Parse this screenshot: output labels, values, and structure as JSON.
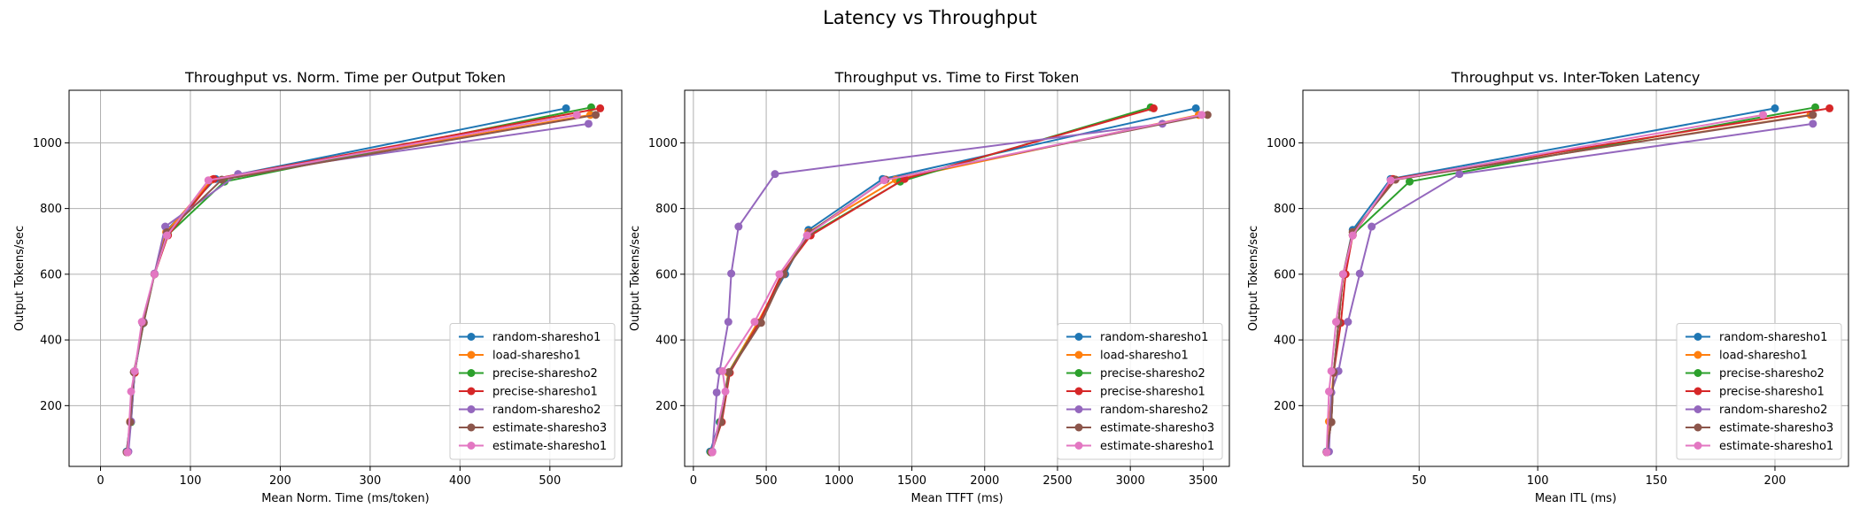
{
  "figure_title": "Latency vs Throughput",
  "series_colors": {
    "random-sharesho1": "#1f77b4",
    "load-sharesho1": "#ff7f0e",
    "precise-sharesho2": "#2ca02c",
    "precise-sharesho1": "#d62728",
    "random-sharesho2": "#9467bd",
    "estimate-sharesho3": "#8c564b",
    "estimate-sharesho1": "#e377c2"
  },
  "chart_data": [
    {
      "type": "line",
      "title": "Throughput vs. Norm. Time per Output Token",
      "xlabel": "Mean Norm. Time (ms/token)",
      "ylabel": "Output Tokens/sec",
      "xlim": [
        -35,
        580
      ],
      "ylim": [
        15,
        1160
      ],
      "xticks": [
        0,
        100,
        200,
        300,
        400,
        500
      ],
      "yticks": [
        200,
        400,
        600,
        800,
        1000
      ],
      "grid": true,
      "legend": "lower right",
      "series": [
        {
          "name": "random-sharesho1",
          "x": [
            29,
            33,
            38,
            47,
            60,
            74,
            128,
            518
          ],
          "y": [
            60,
            150,
            300,
            450,
            600,
            735,
            890,
            1105
          ]
        },
        {
          "name": "load-sharesho1",
          "x": [
            30,
            33,
            38,
            47,
            60,
            73,
            124,
            545
          ],
          "y": [
            58,
            152,
            300,
            452,
            600,
            728,
            888,
            1085
          ]
        },
        {
          "name": "precise-sharesho2",
          "x": [
            30,
            34,
            38,
            48,
            60,
            75,
            138,
            546
          ],
          "y": [
            58,
            150,
            302,
            452,
            600,
            720,
            882,
            1108
          ]
        },
        {
          "name": "precise-sharesho1",
          "x": [
            30,
            33,
            38,
            47,
            60,
            75,
            126,
            556
          ],
          "y": [
            58,
            150,
            300,
            452,
            600,
            718,
            890,
            1105
          ]
        },
        {
          "name": "random-sharesho2",
          "x": [
            31,
            34,
            38,
            48,
            60,
            72,
            153,
            543
          ],
          "y": [
            60,
            152,
            305,
            455,
            602,
            745,
            905,
            1058
          ]
        },
        {
          "name": "estimate-sharesho3",
          "x": [
            29,
            33,
            37,
            48,
            60,
            74,
            135,
            551
          ],
          "y": [
            58,
            150,
            302,
            452,
            600,
            728,
            888,
            1085
          ]
        },
        {
          "name": "estimate-sharesho1",
          "x": [
            30,
            34,
            38,
            46,
            60,
            74,
            120,
            530
          ],
          "y": [
            58,
            243,
            305,
            455,
            600,
            718,
            886,
            1085
          ]
        }
      ]
    },
    {
      "type": "line",
      "title": "Throughput vs. Time to First Token",
      "xlabel": "Mean TTFT (ms)",
      "ylabel": "Output Tokens/sec",
      "xlim": [
        -60,
        3680
      ],
      "ylim": [
        15,
        1160
      ],
      "xticks": [
        0,
        500,
        1000,
        1500,
        2000,
        2500,
        3000,
        3500
      ],
      "yticks": [
        200,
        400,
        600,
        800,
        1000
      ],
      "grid": true,
      "legend": "lower right",
      "series": [
        {
          "name": "random-sharesho1",
          "x": [
            115,
            180,
            240,
            440,
            630,
            790,
            1300,
            3450
          ],
          "y": [
            60,
            150,
            300,
            450,
            600,
            735,
            890,
            1105
          ]
        },
        {
          "name": "load-sharesho1",
          "x": [
            120,
            190,
            240,
            440,
            620,
            790,
            1390,
            3470
          ],
          "y": [
            58,
            152,
            300,
            452,
            600,
            728,
            888,
            1085
          ]
        },
        {
          "name": "precise-sharesho2",
          "x": [
            120,
            185,
            245,
            450,
            610,
            800,
            1420,
            3140
          ],
          "y": [
            58,
            150,
            302,
            452,
            600,
            720,
            882,
            1108
          ]
        },
        {
          "name": "precise-sharesho1",
          "x": [
            125,
            195,
            250,
            450,
            605,
            805,
            1450,
            3160
          ],
          "y": [
            58,
            150,
            300,
            452,
            600,
            718,
            890,
            1105
          ]
        },
        {
          "name": "random-sharesho2",
          "x": [
            130,
            160,
            180,
            240,
            260,
            310,
            560,
            3220
          ],
          "y": [
            60,
            240,
            305,
            455,
            602,
            745,
            905,
            1058
          ]
        },
        {
          "name": "estimate-sharesho3",
          "x": [
            125,
            190,
            245,
            465,
            620,
            800,
            1320,
            3530
          ],
          "y": [
            58,
            150,
            302,
            452,
            600,
            728,
            888,
            1085
          ]
        },
        {
          "name": "estimate-sharesho1",
          "x": [
            130,
            220,
            200,
            420,
            590,
            780,
            1310,
            3490
          ],
          "y": [
            58,
            243,
            305,
            455,
            600,
            718,
            886,
            1085
          ]
        }
      ]
    },
    {
      "type": "line",
      "title": "Throughput vs. Inter-Token Latency",
      "xlabel": "Mean ITL (ms)",
      "ylabel": "Output Tokens/sec",
      "xlim": [
        1,
        231
      ],
      "ylim": [
        15,
        1160
      ],
      "xticks": [
        50,
        100,
        150,
        200
      ],
      "yticks": [
        200,
        400,
        600,
        800,
        1000
      ],
      "grid": true,
      "legend": "lower right",
      "series": [
        {
          "name": "random-sharesho1",
          "x": [
            11,
            13,
            14,
            16,
            18,
            22,
            38,
            200
          ],
          "y": [
            60,
            150,
            300,
            450,
            600,
            735,
            890,
            1105
          ]
        },
        {
          "name": "load-sharesho1",
          "x": [
            11,
            12,
            14,
            16,
            18,
            22,
            40,
            215
          ],
          "y": [
            58,
            152,
            300,
            452,
            600,
            728,
            888,
            1085
          ]
        },
        {
          "name": "precise-sharesho2",
          "x": [
            11,
            13,
            14,
            16,
            18,
            22,
            46,
            217
          ],
          "y": [
            58,
            150,
            302,
            452,
            600,
            720,
            882,
            1108
          ]
        },
        {
          "name": "precise-sharesho1",
          "x": [
            11,
            13,
            14,
            17,
            19,
            22,
            39,
            223
          ],
          "y": [
            58,
            150,
            300,
            452,
            600,
            718,
            890,
            1105
          ]
        },
        {
          "name": "random-sharesho2",
          "x": [
            12,
            13,
            16,
            20,
            25,
            30,
            67,
            216
          ],
          "y": [
            60,
            240,
            305,
            455,
            602,
            745,
            905,
            1058
          ]
        },
        {
          "name": "estimate-sharesho3",
          "x": [
            11,
            13,
            14,
            16,
            18,
            22,
            40,
            216
          ],
          "y": [
            58,
            150,
            302,
            452,
            600,
            728,
            888,
            1085
          ]
        },
        {
          "name": "estimate-sharesho1",
          "x": [
            11,
            12,
            13,
            15,
            18,
            22,
            38,
            195
          ],
          "y": [
            58,
            243,
            305,
            455,
            600,
            718,
            886,
            1085
          ]
        }
      ]
    }
  ]
}
